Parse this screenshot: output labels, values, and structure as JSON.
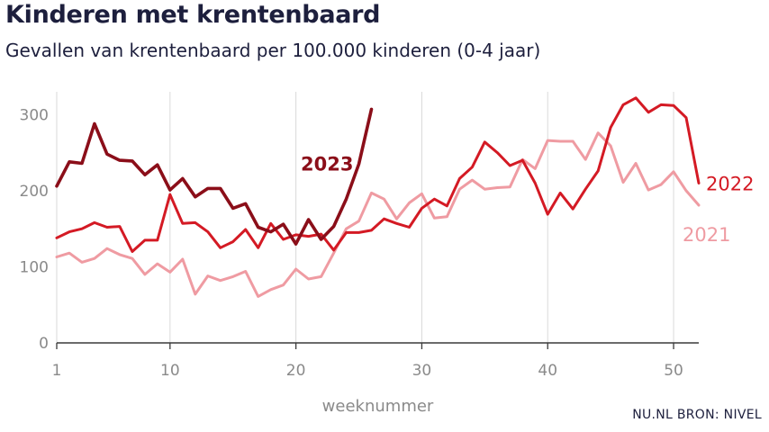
{
  "header": {
    "title": "Kinderen met krentenbaard",
    "subtitle": "Gevallen van krentenbaard per 100.000 kinderen (0-4 jaar)",
    "source": "NU.NL BRON: NIVEL"
  },
  "chart_data": {
    "type": "line",
    "title": "Kinderen met krentenbaard",
    "subtitle": "Gevallen van krentenbaard per 100.000 kinderen (0-4 jaar)",
    "xlabel": "weeknummer",
    "ylabel": "",
    "xlim": [
      1,
      52
    ],
    "ylim": [
      0,
      330
    ],
    "x_ticks": [
      1,
      10,
      20,
      30,
      40,
      50
    ],
    "x_tick_labels": [
      "1",
      "10",
      "20",
      "30",
      "40",
      "50"
    ],
    "y_ticks": [
      0,
      100,
      200,
      300
    ],
    "y_tick_labels": [
      "0",
      "100",
      "200",
      "300"
    ],
    "grid": "vertical",
    "legend": "inline labels at line ends",
    "series": [
      {
        "name": "2021",
        "color": "#ef9ba2",
        "x": [
          1,
          2,
          3,
          4,
          5,
          6,
          7,
          8,
          9,
          10,
          11,
          12,
          13,
          14,
          15,
          16,
          17,
          18,
          19,
          20,
          21,
          22,
          23,
          24,
          25,
          26,
          27,
          28,
          29,
          30,
          31,
          32,
          33,
          34,
          35,
          36,
          37,
          38,
          39,
          40,
          41,
          42,
          43,
          44,
          45,
          46,
          47,
          48,
          49,
          50,
          51,
          52
        ],
        "values": [
          113,
          118,
          106,
          111,
          124,
          116,
          111,
          90,
          104,
          93,
          110,
          64,
          88,
          82,
          87,
          94,
          61,
          70,
          76,
          97,
          84,
          87,
          118,
          150,
          160,
          197,
          189,
          163,
          184,
          196,
          164,
          166,
          202,
          214,
          202,
          204,
          205,
          241,
          229,
          266,
          265,
          265,
          241,
          276,
          259,
          211,
          236,
          201,
          208,
          225,
          200,
          181
        ]
      },
      {
        "name": "2022",
        "color": "#d41a24",
        "x": [
          1,
          2,
          3,
          4,
          5,
          6,
          7,
          8,
          9,
          10,
          11,
          12,
          13,
          14,
          15,
          16,
          17,
          18,
          19,
          20,
          21,
          22,
          23,
          24,
          25,
          26,
          27,
          28,
          29,
          30,
          31,
          32,
          33,
          34,
          35,
          36,
          37,
          38,
          39,
          40,
          41,
          42,
          43,
          44,
          45,
          46,
          47,
          48,
          49,
          50,
          51,
          52
        ],
        "values": [
          138,
          146,
          150,
          158,
          152,
          153,
          120,
          135,
          135,
          195,
          157,
          158,
          146,
          125,
          133,
          149,
          125,
          157,
          136,
          142,
          140,
          143,
          122,
          145,
          145,
          148,
          163,
          157,
          152,
          177,
          189,
          180,
          216,
          231,
          264,
          250,
          233,
          240,
          210,
          169,
          197,
          176,
          202,
          226,
          283,
          313,
          322,
          303,
          313,
          312,
          296,
          210
        ]
      },
      {
        "name": "2023",
        "color": "#8b0e19",
        "x": [
          1,
          2,
          3,
          4,
          5,
          6,
          7,
          8,
          9,
          10,
          11,
          12,
          13,
          14,
          15,
          16,
          17,
          18,
          19,
          20,
          21,
          22,
          23,
          24,
          25,
          26
        ],
        "values": [
          206,
          238,
          236,
          288,
          248,
          240,
          239,
          221,
          234,
          201,
          216,
          192,
          203,
          203,
          177,
          183,
          152,
          146,
          156,
          130,
          162,
          136,
          153,
          189,
          235,
          307
        ]
      }
    ]
  }
}
